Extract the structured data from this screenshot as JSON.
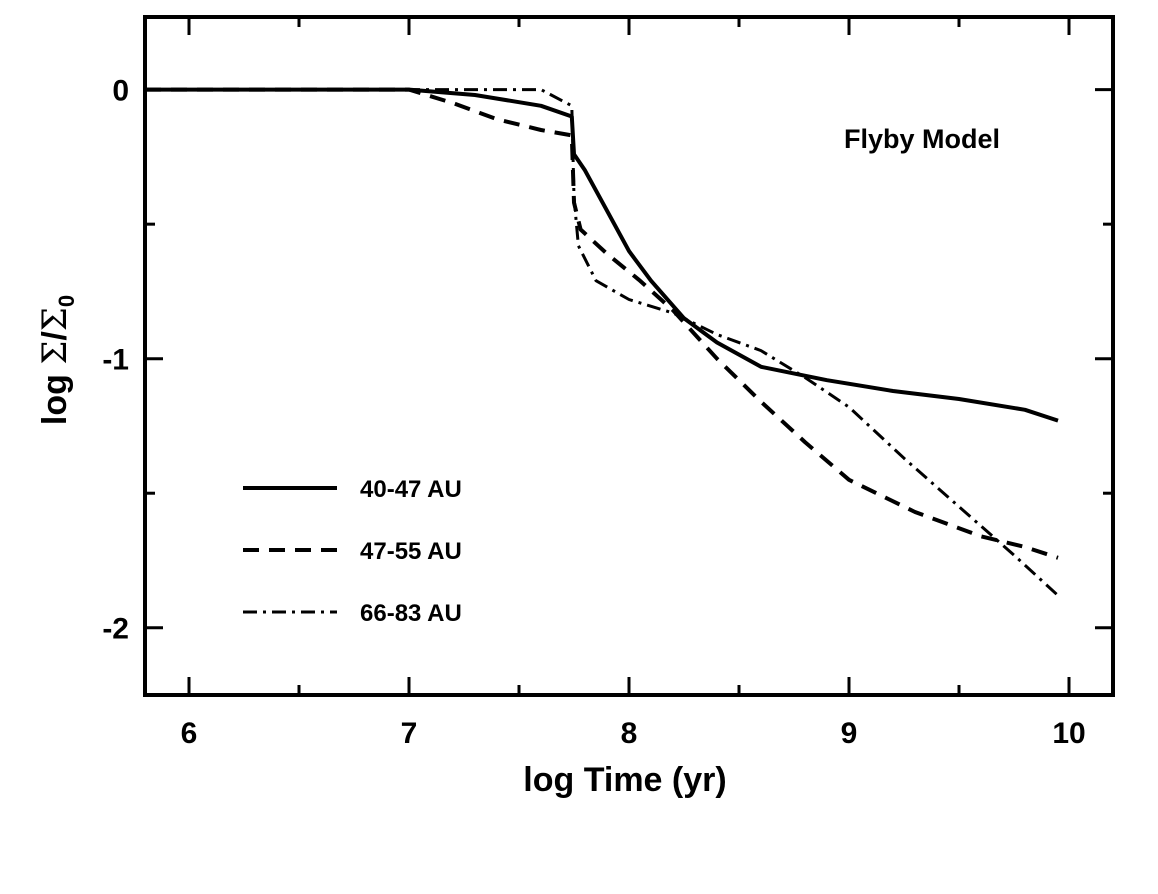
{
  "chart_data": {
    "type": "line",
    "annotation": "Flyby Model",
    "xlabel": "log Time (yr)",
    "ylabel": {
      "prefix": "log ",
      "sigma": "Σ",
      "slash": "/",
      "subscript": "0"
    },
    "xlim": [
      5.8,
      10.2
    ],
    "ylim": [
      -2.25,
      0.27
    ],
    "x_ticks": [
      6,
      7,
      8,
      9,
      10
    ],
    "x_tick_labels": [
      "6",
      "7",
      "8",
      "9",
      "10"
    ],
    "y_ticks": [
      0,
      -1,
      -2
    ],
    "y_tick_labels": [
      "0",
      "-1",
      "-2"
    ],
    "legend_position": "lower-left",
    "series": [
      {
        "name": "40-47 AU",
        "style": "solid",
        "points": [
          [
            5.8,
            0
          ],
          [
            7.0,
            0
          ],
          [
            7.3,
            -0.02
          ],
          [
            7.6,
            -0.06
          ],
          [
            7.74,
            -0.1
          ],
          [
            7.75,
            -0.24
          ],
          [
            7.8,
            -0.3
          ],
          [
            7.9,
            -0.45
          ],
          [
            8.0,
            -0.6
          ],
          [
            8.1,
            -0.71
          ],
          [
            8.25,
            -0.85
          ],
          [
            8.4,
            -0.94
          ],
          [
            8.6,
            -1.03
          ],
          [
            8.9,
            -1.08
          ],
          [
            9.2,
            -1.12
          ],
          [
            9.5,
            -1.15
          ],
          [
            9.8,
            -1.19
          ],
          [
            9.95,
            -1.23
          ]
        ]
      },
      {
        "name": "47-55 AU",
        "style": "dashed",
        "points": [
          [
            5.8,
            0
          ],
          [
            7.0,
            0
          ],
          [
            7.2,
            -0.05
          ],
          [
            7.4,
            -0.11
          ],
          [
            7.6,
            -0.15
          ],
          [
            7.74,
            -0.17
          ],
          [
            7.75,
            -0.42
          ],
          [
            7.78,
            -0.52
          ],
          [
            7.9,
            -0.61
          ],
          [
            8.05,
            -0.71
          ],
          [
            8.2,
            -0.82
          ],
          [
            8.4,
            -1.0
          ],
          [
            8.6,
            -1.16
          ],
          [
            8.8,
            -1.31
          ],
          [
            9.0,
            -1.45
          ],
          [
            9.3,
            -1.57
          ],
          [
            9.6,
            -1.66
          ],
          [
            9.8,
            -1.7
          ],
          [
            9.95,
            -1.74
          ]
        ]
      },
      {
        "name": "66-83 AU",
        "style": "dashdot",
        "points": [
          [
            5.8,
            0
          ],
          [
            7.0,
            0
          ],
          [
            7.4,
            0
          ],
          [
            7.6,
            0
          ],
          [
            7.74,
            -0.06
          ],
          [
            7.75,
            -0.4
          ],
          [
            7.77,
            -0.58
          ],
          [
            7.85,
            -0.71
          ],
          [
            8.0,
            -0.78
          ],
          [
            8.2,
            -0.83
          ],
          [
            8.4,
            -0.91
          ],
          [
            8.6,
            -0.97
          ],
          [
            8.8,
            -1.07
          ],
          [
            9.0,
            -1.18
          ],
          [
            9.25,
            -1.37
          ],
          [
            9.5,
            -1.55
          ],
          [
            9.75,
            -1.73
          ],
          [
            9.95,
            -1.88
          ]
        ]
      }
    ]
  }
}
